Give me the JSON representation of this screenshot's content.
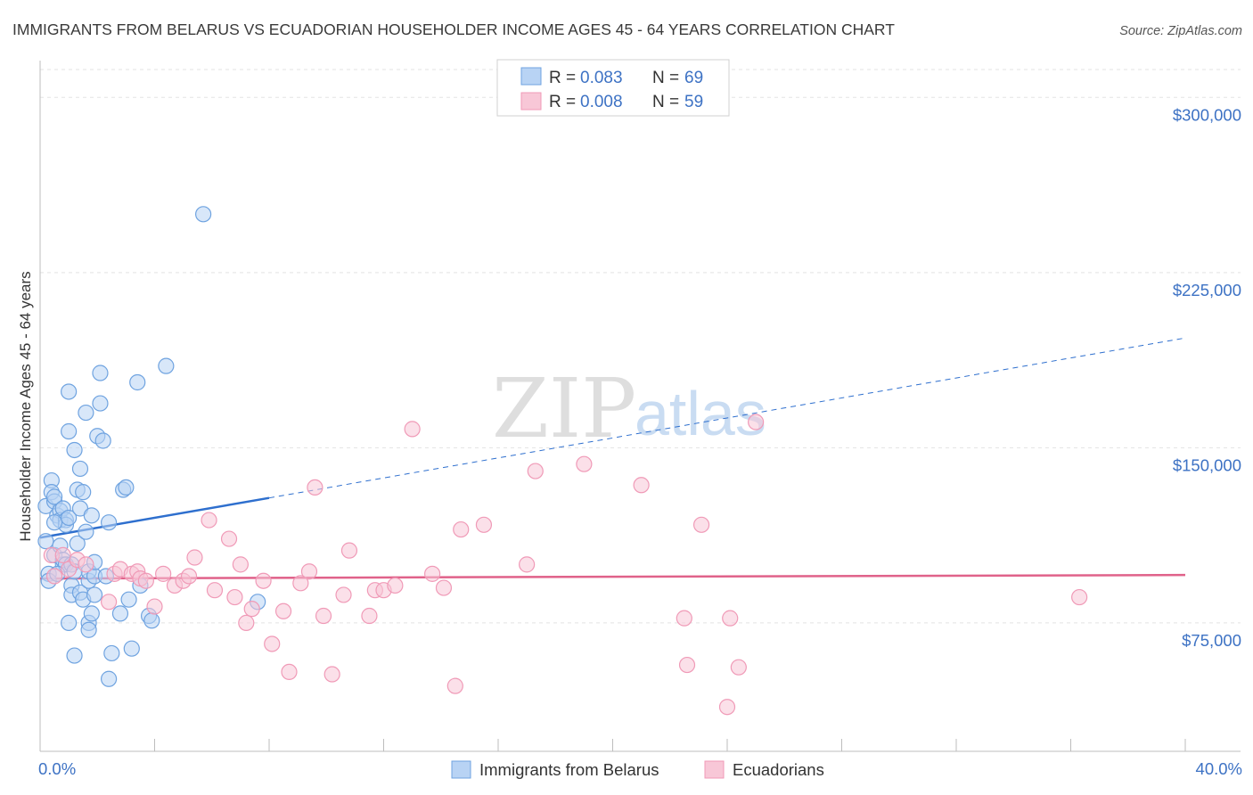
{
  "chart_data": {
    "type": "scatter",
    "title": "IMMIGRANTS FROM BELARUS VS ECUADORIAN HOUSEHOLDER INCOME AGES 45 - 64 YEARS CORRELATION CHART",
    "source": "Source: ZipAtlas.com",
    "xlabel": "",
    "ylabel": "Householder Income Ages 45 - 64 years",
    "xlim": [
      0,
      40
    ],
    "ylim": [
      20000,
      315000
    ],
    "x_tick_labels": {
      "min": "0.0%",
      "max": "40.0%"
    },
    "y_ticks": [
      {
        "value": 75000,
        "label": "$75,000"
      },
      {
        "value": 150000,
        "label": "$150,000"
      },
      {
        "value": 225000,
        "label": "$225,000"
      },
      {
        "value": 300000,
        "label": "$300,000"
      }
    ],
    "grid": true,
    "legend_position": "top-center",
    "watermark": {
      "zip": "ZIP",
      "atlas": "atlas"
    },
    "legend": [
      {
        "r_label": "R =",
        "r_value": "0.083",
        "n_label": "N =",
        "n_value": "69"
      },
      {
        "r_label": "R =",
        "r_value": "0.008",
        "n_label": "N =",
        "n_value": "59"
      }
    ],
    "series": [
      {
        "name": "Immigrants from Belarus",
        "color": "#6fa3e0",
        "fill": "#b8d3f4",
        "trend": {
          "x0": 0,
          "y0": 111500,
          "x1": 8,
          "y1": 128500,
          "x_extend": 40,
          "y_extend": 197000,
          "color": "#2e6fce"
        },
        "points": [
          [
            0.2,
            125000
          ],
          [
            0.2,
            110000
          ],
          [
            0.3,
            96000
          ],
          [
            0.3,
            93000
          ],
          [
            0.4,
            136000
          ],
          [
            0.4,
            131000
          ],
          [
            0.5,
            127000
          ],
          [
            0.5,
            129000
          ],
          [
            0.5,
            104000
          ],
          [
            0.6,
            121000
          ],
          [
            0.7,
            123000
          ],
          [
            0.7,
            119000
          ],
          [
            0.7,
            108000
          ],
          [
            0.8,
            100000
          ],
          [
            0.8,
            102000
          ],
          [
            0.8,
            124000
          ],
          [
            0.9,
            119000
          ],
          [
            0.9,
            117000
          ],
          [
            0.9,
            100000
          ],
          [
            1.0,
            157000
          ],
          [
            1.0,
            174000
          ],
          [
            1.0,
            120000
          ],
          [
            1.1,
            91000
          ],
          [
            1.1,
            87000
          ],
          [
            1.0,
            75000
          ],
          [
            1.1,
            100000
          ],
          [
            1.2,
            149000
          ],
          [
            1.2,
            61000
          ],
          [
            1.3,
            132000
          ],
          [
            1.3,
            109000
          ],
          [
            1.4,
            141000
          ],
          [
            1.4,
            124000
          ],
          [
            1.4,
            88000
          ],
          [
            1.5,
            85000
          ],
          [
            1.5,
            131000
          ],
          [
            1.6,
            114000
          ],
          [
            1.6,
            165000
          ],
          [
            1.7,
            93000
          ],
          [
            1.7,
            75000
          ],
          [
            1.7,
            72000
          ],
          [
            1.7,
            97000
          ],
          [
            1.8,
            121000
          ],
          [
            1.8,
            79000
          ],
          [
            1.9,
            87000
          ],
          [
            1.9,
            95000
          ],
          [
            2.0,
            155000
          ],
          [
            2.1,
            182000
          ],
          [
            2.1,
            169000
          ],
          [
            2.2,
            153000
          ],
          [
            2.3,
            95000
          ],
          [
            2.4,
            118000
          ],
          [
            2.4,
            51000
          ],
          [
            2.5,
            62000
          ],
          [
            2.8,
            79000
          ],
          [
            2.9,
            132000
          ],
          [
            3.0,
            133000
          ],
          [
            3.1,
            85000
          ],
          [
            3.2,
            64000
          ],
          [
            3.4,
            178000
          ],
          [
            3.5,
            91000
          ],
          [
            3.8,
            78000
          ],
          [
            3.9,
            76000
          ],
          [
            4.4,
            185000
          ],
          [
            5.7,
            250000
          ],
          [
            7.6,
            84000
          ],
          [
            0.5,
            118000
          ],
          [
            0.6,
            96000
          ],
          [
            1.2,
            97000
          ],
          [
            1.9,
            101000
          ]
        ]
      },
      {
        "name": "Ecuadorians",
        "color": "#f09ab7",
        "fill": "#f8c7d7",
        "trend": {
          "x0": 0,
          "y0": 94000,
          "x1": 40,
          "y1": 95500,
          "color": "#e0628a"
        },
        "points": [
          [
            0.4,
            104000
          ],
          [
            0.5,
            95000
          ],
          [
            0.8,
            104000
          ],
          [
            1.0,
            98000
          ],
          [
            1.3,
            102000
          ],
          [
            1.6,
            100000
          ],
          [
            2.4,
            84000
          ],
          [
            2.6,
            96000
          ],
          [
            2.8,
            98000
          ],
          [
            3.2,
            96000
          ],
          [
            3.4,
            97000
          ],
          [
            3.5,
            94000
          ],
          [
            3.7,
            93000
          ],
          [
            4.0,
            82000
          ],
          [
            4.3,
            96000
          ],
          [
            4.7,
            91000
          ],
          [
            5.0,
            93000
          ],
          [
            5.2,
            95000
          ],
          [
            5.4,
            103000
          ],
          [
            5.9,
            119000
          ],
          [
            6.1,
            89000
          ],
          [
            6.6,
            111000
          ],
          [
            6.8,
            86000
          ],
          [
            7.0,
            100000
          ],
          [
            7.2,
            75000
          ],
          [
            7.4,
            81000
          ],
          [
            7.8,
            93000
          ],
          [
            8.1,
            66000
          ],
          [
            8.5,
            80000
          ],
          [
            8.7,
            54000
          ],
          [
            9.1,
            92000
          ],
          [
            9.4,
            97000
          ],
          [
            9.6,
            133000
          ],
          [
            9.9,
            78000
          ],
          [
            10.2,
            53000
          ],
          [
            10.6,
            87000
          ],
          [
            10.8,
            106000
          ],
          [
            11.5,
            78000
          ],
          [
            11.7,
            89000
          ],
          [
            12.0,
            89000
          ],
          [
            12.4,
            91000
          ],
          [
            13.0,
            158000
          ],
          [
            13.7,
            96000
          ],
          [
            14.1,
            90000
          ],
          [
            14.5,
            48000
          ],
          [
            14.7,
            115000
          ],
          [
            15.5,
            117000
          ],
          [
            17.0,
            100000
          ],
          [
            17.3,
            140000
          ],
          [
            19.0,
            143000
          ],
          [
            21.0,
            134000
          ],
          [
            22.5,
            77000
          ],
          [
            22.6,
            57000
          ],
          [
            23.1,
            117000
          ],
          [
            24.0,
            39000
          ],
          [
            24.1,
            77000
          ],
          [
            24.4,
            56000
          ],
          [
            25.0,
            161000
          ],
          [
            36.3,
            86000
          ]
        ]
      }
    ]
  }
}
